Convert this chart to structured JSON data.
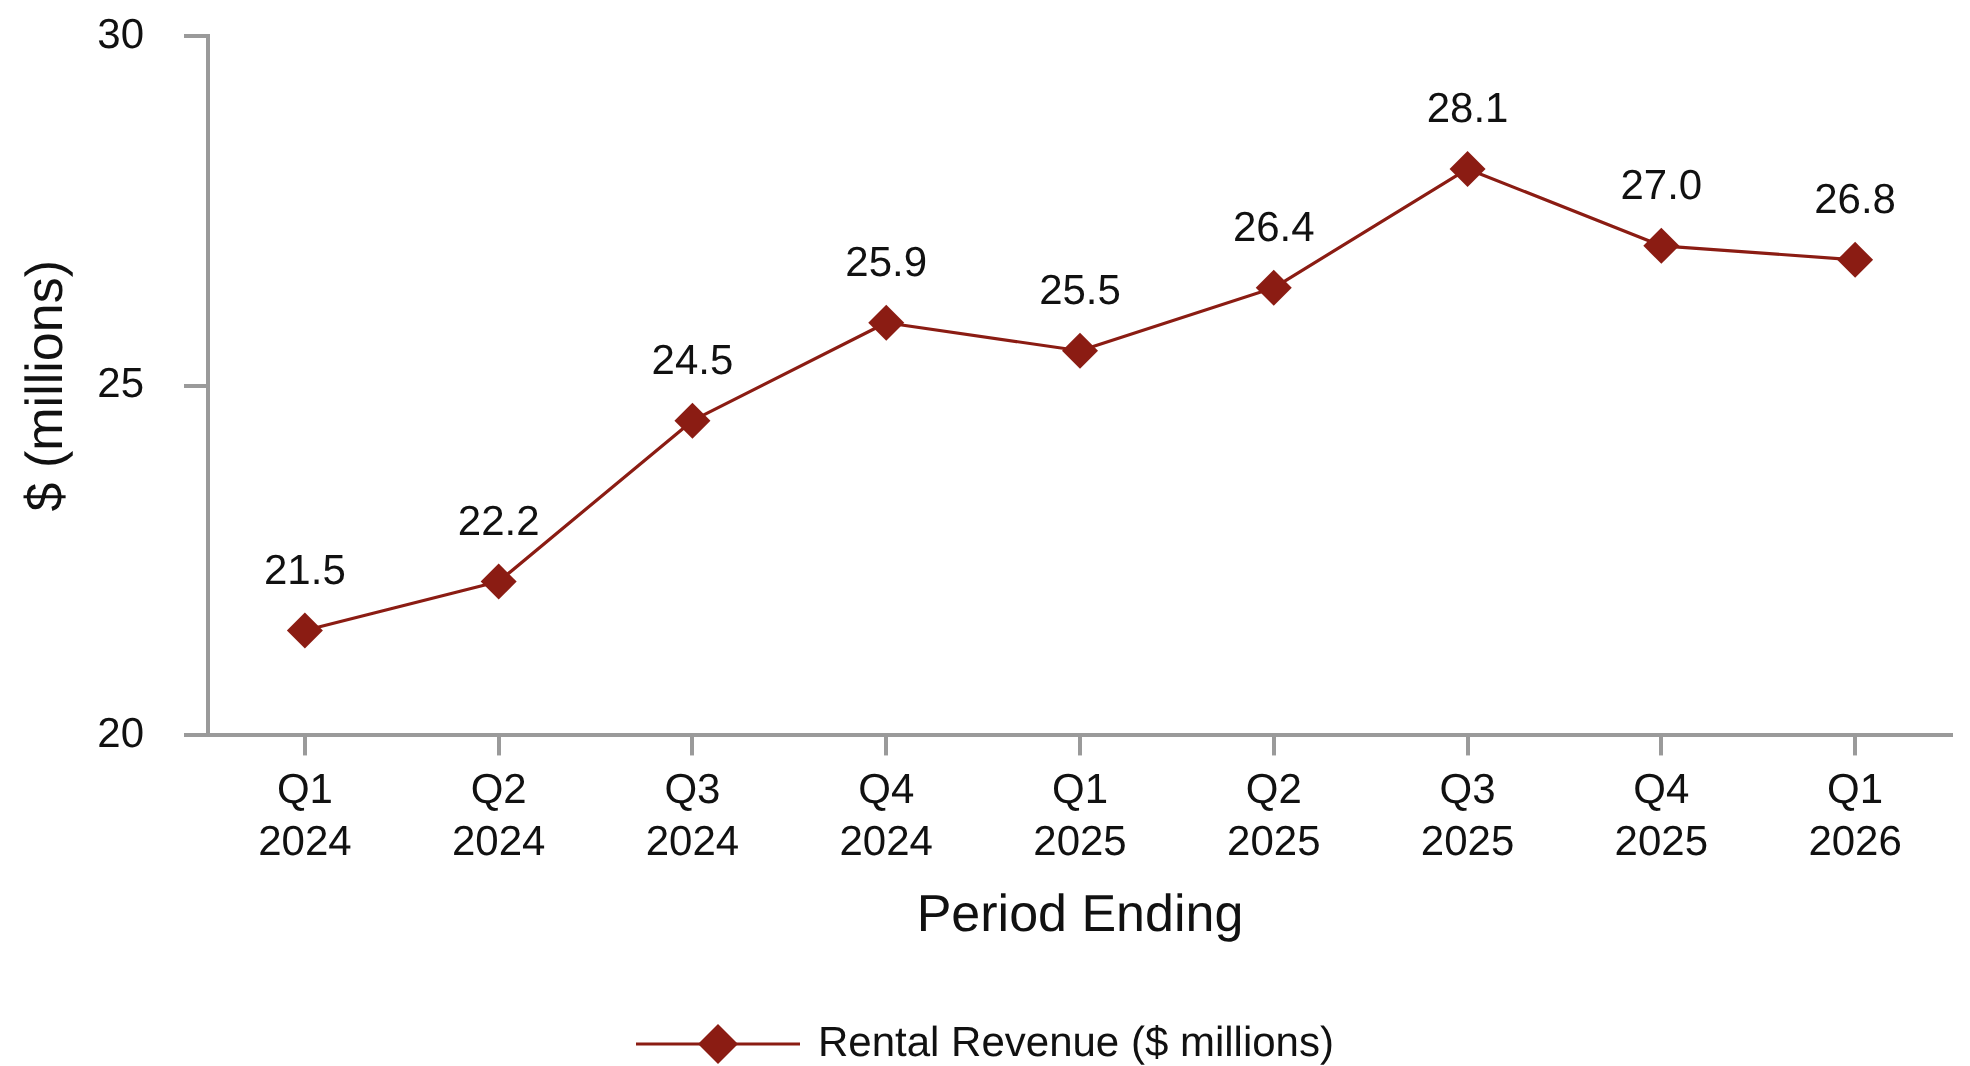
{
  "chart_data": {
    "type": "line",
    "categories": [
      "Q1 2024",
      "Q2 2024",
      "Q3 2024",
      "Q4 2024",
      "Q1 2025",
      "Q2 2025",
      "Q3 2025",
      "Q4 2025",
      "Q1 2026"
    ],
    "series": [
      {
        "name": "Rental Revenue ($ millions)",
        "color": "#8b1c13",
        "values": [
          21.5,
          22.2,
          24.5,
          25.9,
          25.5,
          26.4,
          28.1,
          27.0,
          26.8
        ],
        "value_labels": [
          "21.5",
          "22.2",
          "24.5",
          "25.9",
          "25.5",
          "26.4",
          "28.1",
          "27.0",
          "26.8"
        ]
      }
    ],
    "xlabel": "Period Ending",
    "ylabel": "$ (millions)",
    "ylim": [
      20,
      30
    ],
    "yticks": [
      20,
      25,
      30
    ],
    "grid": false,
    "legend": "bottom",
    "marker": "diamond",
    "line_style": "solid"
  }
}
